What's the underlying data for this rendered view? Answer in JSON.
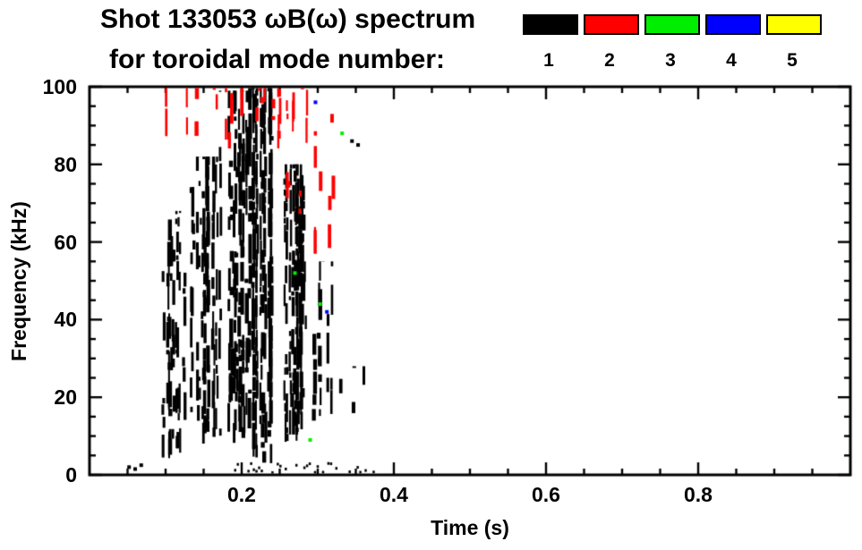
{
  "header": {
    "title": "Shot 133053 ωB(ω) spectrum",
    "subtitle": "for toroidal mode number:"
  },
  "legend": {
    "modes": [
      {
        "label": "1",
        "color": "#000000"
      },
      {
        "label": "2",
        "color": "#ff0000"
      },
      {
        "label": "3",
        "color": "#00ee00"
      },
      {
        "label": "4",
        "color": "#0000ff"
      },
      {
        "label": "5",
        "color": "#ffff00"
      }
    ]
  },
  "chart_data": {
    "type": "scatter",
    "title": "Shot 133053 ωB(ω) spectrum for toroidal mode number: 1 2 3 4 5",
    "xlabel": "Time (s)",
    "ylabel": "Frequency (kHz)",
    "xlim": [
      0,
      1.0
    ],
    "ylim": [
      0,
      100
    ],
    "grid": false,
    "legend_position": "top-right",
    "xticks": {
      "labels": [
        "0.2",
        "0.4",
        "0.6",
        "0.8"
      ],
      "major": [
        0.2,
        0.4,
        0.6,
        0.8
      ],
      "minor_step": 0.05
    },
    "yticks": {
      "labels": [
        "0",
        "20",
        "40",
        "60",
        "80",
        "100"
      ],
      "major": [
        0,
        20,
        40,
        60,
        80,
        100
      ],
      "minor_step": 5
    },
    "description": "Magnetic fluctuation spectrogram: mode activity concentrated between t=0.09 s and t=0.36 s. n=1 (black) dominant, vertical striations spanning 0-100 kHz with a white gap near t=0.24 s; n=2 (red) mainly 80-100 kHz for t=0.10-0.29 s and 35-100 kHz for t=0.25-0.33 s; isolated n=3 (green) and n=4 (blue) points near t=0.27-0.33 s; no n=5 (yellow) activity.",
    "seed": 11,
    "streak_groups": [
      {
        "mode": 1,
        "color": "#000000",
        "t0": 0.088,
        "t1": 0.128,
        "n": 11,
        "f0": 4,
        "f1": 68,
        "fill": 0.5
      },
      {
        "mode": 1,
        "color": "#000000",
        "t0": 0.128,
        "t1": 0.168,
        "n": 13,
        "f0": 8,
        "f1": 82,
        "fill": 0.55
      },
      {
        "mode": 1,
        "color": "#000000",
        "t0": 0.168,
        "t1": 0.208,
        "n": 13,
        "f0": 8,
        "f1": 99,
        "fill": 0.6
      },
      {
        "mode": 1,
        "color": "#000000",
        "t0": 0.208,
        "t1": 0.238,
        "n": 11,
        "f0": 3,
        "f1": 100,
        "fill": 0.78
      },
      {
        "mode": 1,
        "color": "#000000",
        "t0": 0.246,
        "t1": 0.282,
        "n": 13,
        "f0": 8,
        "f1": 80,
        "fill": 0.72
      },
      {
        "mode": 1,
        "color": "#000000",
        "t0": 0.282,
        "t1": 0.318,
        "n": 8,
        "f0": 12,
        "f1": 55,
        "fill": 0.28
      },
      {
        "mode": 1,
        "color": "#000000",
        "t0": 0.318,
        "t1": 0.362,
        "n": 6,
        "f0": 3,
        "f1": 28,
        "fill": 0.18
      },
      {
        "mode": 2,
        "color": "#ff0000",
        "t0": 0.098,
        "t1": 0.14,
        "n": 6,
        "f0": 84,
        "f1": 100,
        "fill": 0.3
      },
      {
        "mode": 2,
        "color": "#ff0000",
        "t0": 0.14,
        "t1": 0.185,
        "n": 6,
        "f0": 82,
        "f1": 100,
        "fill": 0.32
      },
      {
        "mode": 2,
        "color": "#ff0000",
        "t0": 0.185,
        "t1": 0.24,
        "n": 7,
        "f0": 90,
        "f1": 100,
        "fill": 0.38
      },
      {
        "mode": 2,
        "color": "#ff0000",
        "t0": 0.24,
        "t1": 0.29,
        "n": 9,
        "f0": 82,
        "f1": 100,
        "fill": 0.5
      },
      {
        "mode": 2,
        "color": "#ff0000",
        "t0": 0.252,
        "t1": 0.305,
        "n": 6,
        "f0": 35,
        "f1": 78,
        "fill": 0.22
      },
      {
        "mode": 2,
        "color": "#ff0000",
        "t0": 0.295,
        "t1": 0.335,
        "n": 5,
        "f0": 55,
        "f1": 100,
        "fill": 0.18
      }
    ],
    "specks": [
      {
        "mode": 1,
        "color": "#000000",
        "t": 0.052,
        "f": 2
      },
      {
        "mode": 1,
        "color": "#000000",
        "t": 0.06,
        "f": 1.5
      },
      {
        "mode": 1,
        "color": "#000000",
        "t": 0.068,
        "f": 2.5
      },
      {
        "mode": 1,
        "color": "#000000",
        "t": 0.345,
        "f": 86
      },
      {
        "mode": 1,
        "color": "#000000",
        "t": 0.353,
        "f": 85
      },
      {
        "mode": 3,
        "color": "#00ee00",
        "t": 0.27,
        "f": 52
      },
      {
        "mode": 3,
        "color": "#00ee00",
        "t": 0.29,
        "f": 9
      },
      {
        "mode": 3,
        "color": "#00ee00",
        "t": 0.303,
        "f": 44
      },
      {
        "mode": 3,
        "color": "#00ee00",
        "t": 0.332,
        "f": 88
      },
      {
        "mode": 4,
        "color": "#0000ff",
        "t": 0.297,
        "f": 96
      },
      {
        "mode": 4,
        "color": "#0000ff",
        "t": 0.312,
        "f": 42
      }
    ],
    "baseline": {
      "t0": 0.19,
      "t1": 0.375,
      "f": 0.8,
      "fill": 0.45
    }
  }
}
